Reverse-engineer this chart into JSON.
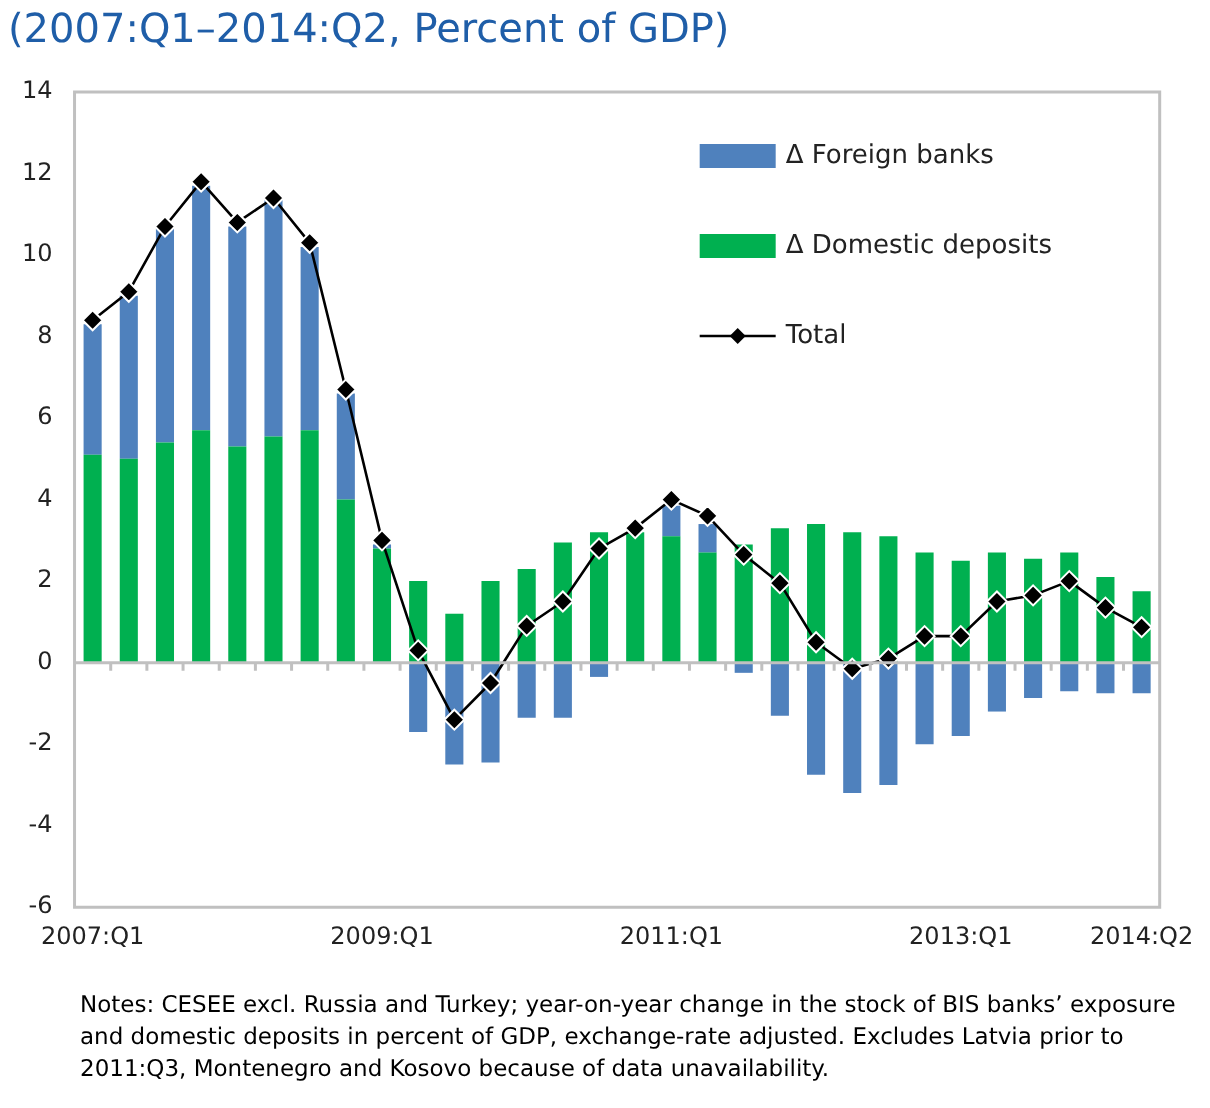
{
  "chart_data": {
    "type": "bar",
    "stacked": true,
    "title": "(2007:Q1–2014:Q2, Percent of GDP)",
    "categories": [
      "2007:Q1",
      null,
      null,
      null,
      null,
      null,
      null,
      null,
      "2009:Q1",
      null,
      null,
      null,
      null,
      null,
      null,
      null,
      "2011:Q1",
      null,
      null,
      null,
      null,
      null,
      null,
      null,
      "2013:Q1",
      null,
      null,
      null,
      null,
      "2014:Q2"
    ],
    "series": [
      {
        "name": "Δ Domestic deposits",
        "color": "#00b050",
        "values": [
          5.1,
          5.0,
          5.4,
          5.7,
          5.3,
          5.55,
          5.7,
          4.0,
          2.8,
          2.0,
          1.2,
          2.0,
          2.3,
          2.95,
          3.2,
          3.2,
          3.1,
          2.7,
          2.9,
          3.3,
          3.4,
          3.2,
          3.1,
          2.7,
          2.5,
          2.7,
          2.55,
          2.7,
          2.1,
          1.75
        ]
      },
      {
        "name": "Δ Foreign banks",
        "color": "#4f81bd",
        "values": [
          3.2,
          4.0,
          5.3,
          6.0,
          5.4,
          5.8,
          4.5,
          2.6,
          0.1,
          -1.7,
          -2.5,
          -2.45,
          -1.35,
          -1.35,
          -0.35,
          null,
          0.75,
          0.7,
          -0.25,
          -1.3,
          -2.75,
          -3.2,
          -3.0,
          -2.0,
          -1.8,
          -1.2,
          -0.87,
          -0.7,
          -0.75,
          -0.75
        ]
      },
      {
        "name": "Total",
        "type": "line",
        "color": "#000000",
        "marker": "diamond",
        "values": [
          8.4,
          9.1,
          10.7,
          11.8,
          10.8,
          11.4,
          10.3,
          6.7,
          3.0,
          0.3,
          -1.4,
          -0.5,
          0.9,
          1.5,
          2.8,
          3.3,
          4.0,
          3.6,
          2.65,
          1.95,
          0.5,
          -0.15,
          0.1,
          0.65,
          0.65,
          1.5,
          1.65,
          2.0,
          1.35,
          0.87
        ]
      }
    ],
    "ylim": [
      -6,
      14
    ],
    "yticks": [
      -6,
      -4,
      -2,
      0,
      2,
      4,
      6,
      8,
      10,
      12,
      14
    ],
    "legend": "top right",
    "annotations": [
      "Notes: CESEE excl. Russia and Turkey; year-on-year change in the stock of BIS banks’ exposure and domestic deposits in percent of GDP, exchange-rate adjusted. Excludes Latvia prior to 2011:Q3, Montenegro and Kosovo because of data unavailability."
    ]
  }
}
